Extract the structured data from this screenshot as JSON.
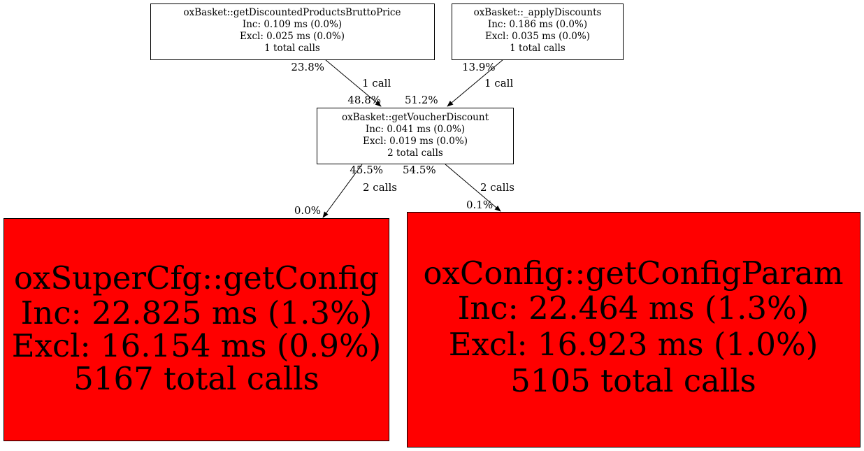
{
  "nodes": {
    "brutto": {
      "title": "oxBasket::getDiscountedProductsBruttoPrice",
      "inc": "Inc: 0.109 ms (0.0%)",
      "excl": "Excl: 0.025 ms (0.0%)",
      "calls": "1 total calls",
      "fill": "#ffffff"
    },
    "apply": {
      "title": "oxBasket::_applyDiscounts",
      "inc": "Inc: 0.186 ms (0.0%)",
      "excl": "Excl: 0.035 ms (0.0%)",
      "calls": "1 total calls",
      "fill": "#ffffff"
    },
    "voucher": {
      "title": "oxBasket::getVoucherDiscount",
      "inc": "Inc: 0.041 ms (0.0%)",
      "excl": "Excl: 0.019 ms (0.0%)",
      "calls": "2 total calls",
      "fill": "#ffffff"
    },
    "getconfig": {
      "title": "oxSuperCfg::getConfig",
      "inc": "Inc: 22.825 ms (1.3%)",
      "excl": "Excl: 16.154 ms (0.9%)",
      "calls": "5167 total calls",
      "fill": "#ff0000"
    },
    "getconfigparam": {
      "title": "oxConfig::getConfigParam",
      "inc": "Inc: 22.464 ms (1.3%)",
      "excl": "Excl: 16.923 ms (1.0%)",
      "calls": "5105 total calls",
      "fill": "#ff0000"
    }
  },
  "edges": {
    "brutto_voucher": {
      "from": "brutto",
      "to": "voucher",
      "tail": "23.8%",
      "label": "1 call",
      "head": "48.8%"
    },
    "apply_voucher": {
      "from": "apply",
      "to": "voucher",
      "tail": "13.9%",
      "label": "1 call",
      "head": "51.2%"
    },
    "voucher_getconfig": {
      "from": "voucher",
      "to": "getconfig",
      "tail": "45.5%",
      "label": "2 calls",
      "head": "0.0%"
    },
    "voucher_getconfigparam": {
      "from": "voucher",
      "to": "getconfigparam",
      "tail": "54.5%",
      "label": "2 calls",
      "head": "0.1%"
    }
  }
}
